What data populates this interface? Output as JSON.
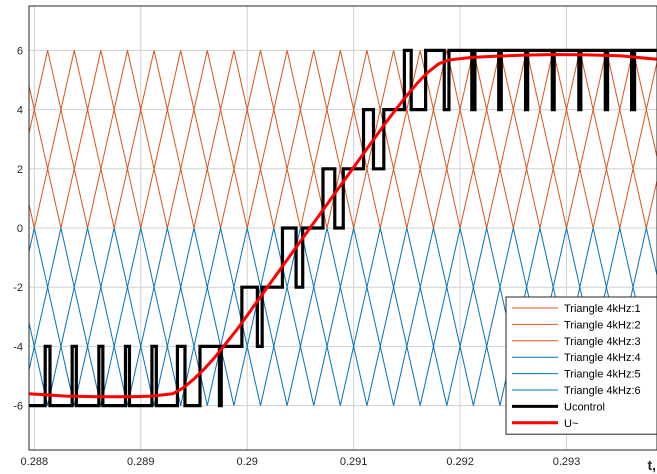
{
  "chart_data": {
    "type": "line",
    "title": "",
    "xlabel": "t,",
    "ylabel": "",
    "xlim": [
      0.28795,
      0.29385
    ],
    "ylim": [
      -7.5,
      7.5
    ],
    "grid": true,
    "x_ticks": [
      "0.288",
      "0.289",
      "0.29",
      "0.291",
      "0.292",
      "0.293"
    ],
    "y_ticks": [
      "-6",
      "-4",
      "-2",
      "0",
      "2",
      "4",
      "6"
    ],
    "legend_position": "bottom-right",
    "triangle_period": 0.00025,
    "series": [
      {
        "name": "Triangle 4kHz:1",
        "kind": "triangle",
        "band": [
          4,
          6
        ],
        "phase_offset": 0.0,
        "color": "#D95319"
      },
      {
        "name": "Triangle 4kHz:2",
        "kind": "triangle",
        "band": [
          2,
          4
        ],
        "phase_offset": 0.000125,
        "color": "#D95319"
      },
      {
        "name": "Triangle 4kHz:3",
        "kind": "triangle",
        "band": [
          0,
          2
        ],
        "phase_offset": 0.0,
        "color": "#D95319"
      },
      {
        "name": "Triangle 4kHz:4",
        "kind": "triangle",
        "band": [
          -2,
          0
        ],
        "phase_offset": 0.000125,
        "color": "#0072BD"
      },
      {
        "name": "Triangle 4kHz:5",
        "kind": "triangle",
        "band": [
          -4,
          -2
        ],
        "phase_offset": 0.0,
        "color": "#0072BD"
      },
      {
        "name": "Triangle 4kHz:6",
        "kind": "triangle",
        "band": [
          -6,
          -4
        ],
        "phase_offset": 0.000125,
        "color": "#0072BD"
      },
      {
        "name": "Ucontrol",
        "kind": "step",
        "color": "#000000"
      },
      {
        "name": "U~",
        "kind": "line",
        "color": "#FF0000",
        "x": [
          0.28795,
          0.2883,
          0.2886,
          0.2889,
          0.2891,
          0.2893,
          0.2894,
          0.2895,
          0.2896,
          0.2897,
          0.2898,
          0.2899,
          0.29,
          0.2901,
          0.2902,
          0.2903,
          0.2904,
          0.2905,
          0.2906,
          0.2907,
          0.2908,
          0.2909,
          0.291,
          0.2911,
          0.2912,
          0.2913,
          0.2914,
          0.2915,
          0.2916,
          0.2917,
          0.2918,
          0.2919,
          0.292,
          0.2921,
          0.2923,
          0.2926,
          0.2929,
          0.2932,
          0.2935,
          0.29385
        ],
        "y": [
          -5.6,
          -5.68,
          -5.7,
          -5.7,
          -5.68,
          -5.6,
          -5.4,
          -5.1,
          -4.75,
          -4.35,
          -3.9,
          -3.45,
          -2.95,
          -2.45,
          -1.95,
          -1.45,
          -0.95,
          -0.45,
          0.05,
          0.55,
          1.05,
          1.55,
          2.05,
          2.55,
          3.05,
          3.55,
          4.02,
          4.48,
          4.9,
          5.27,
          5.55,
          5.68,
          5.72,
          5.76,
          5.8,
          5.84,
          5.86,
          5.85,
          5.82,
          5.7
        ]
      }
    ]
  }
}
